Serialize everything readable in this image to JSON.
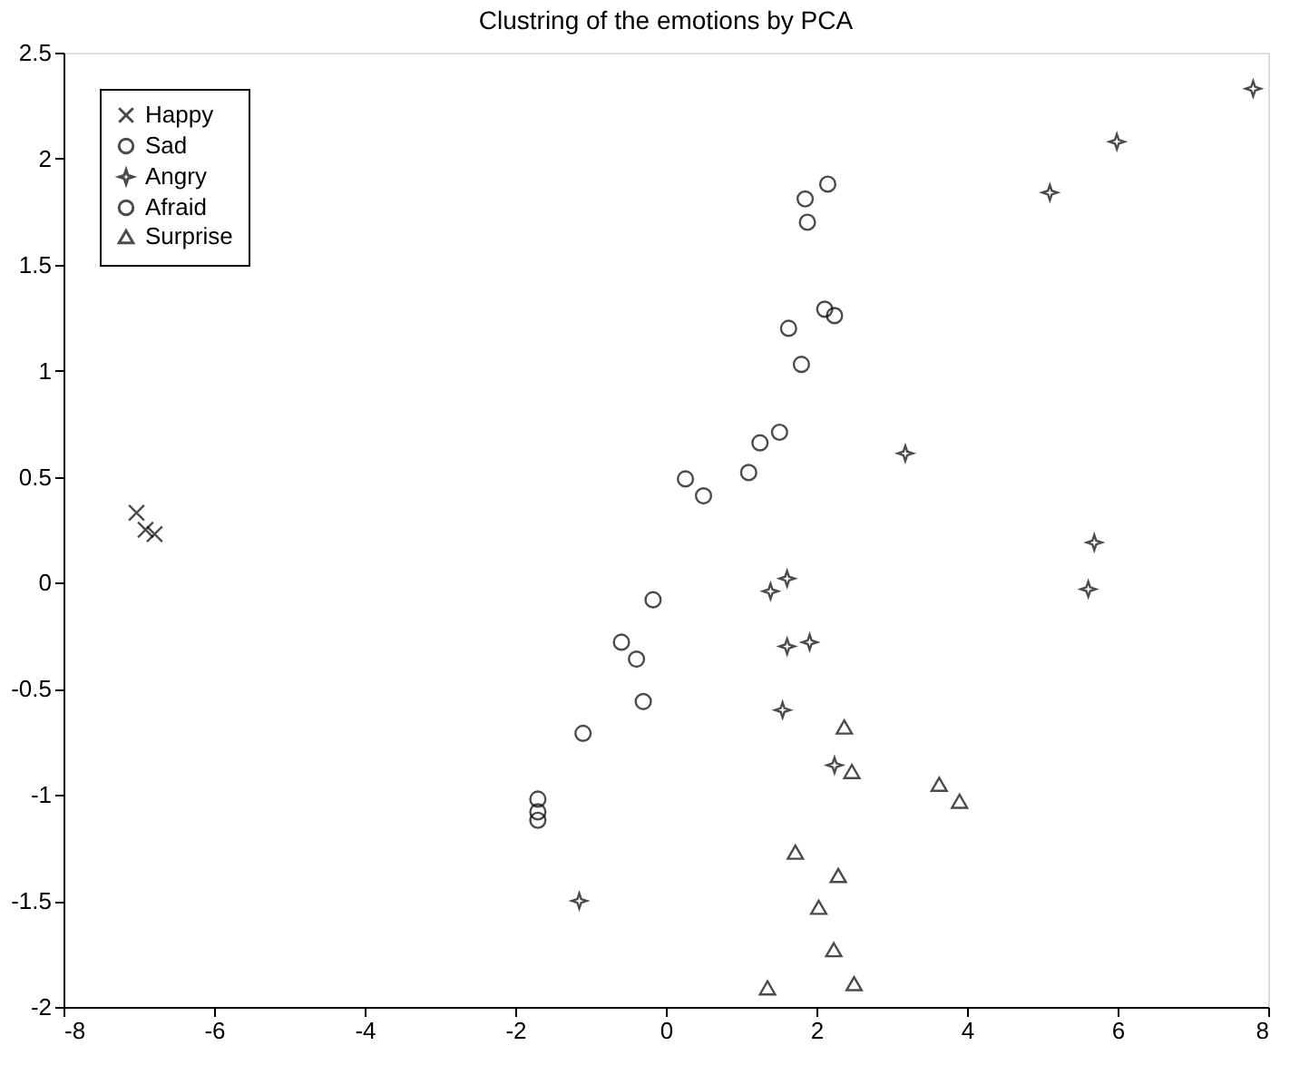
{
  "chart_data": {
    "type": "scatter",
    "title": "Clustring of the emotions by PCA",
    "xlim": [
      -8,
      8
    ],
    "xticks": [
      -8,
      -6,
      -4,
      -2,
      0,
      2,
      4,
      6,
      8
    ],
    "ylim": [
      -2,
      2.5
    ],
    "yticks": [
      -2,
      -1.5,
      -1,
      -0.5,
      0,
      0.5,
      1,
      1.5,
      2,
      2.5
    ],
    "grid": false,
    "legend": "top left",
    "series": [
      {
        "name": "Happy",
        "color": "#000000",
        "marker": "cross",
        "x": [
          -7.03,
          -6.91,
          -6.79
        ],
        "values": [
          0.33,
          0.25,
          0.23
        ]
      },
      {
        "name": "Sad",
        "color": "#000000",
        "marker": "circle",
        "x": [
          0.26,
          0.5,
          -0.17,
          -0.59,
          -0.39,
          -0.3,
          -1.1,
          -1.7,
          -1.7,
          -1.7
        ],
        "values": [
          0.49,
          0.41,
          -0.08,
          -0.28,
          -0.36,
          -0.56,
          -0.71,
          -1.02,
          -1.08,
          -1.12
        ]
      },
      {
        "name": "Angry",
        "color": "#000000",
        "marker": "star",
        "x": [
          3.18,
          1.61,
          1.39,
          1.61,
          1.91,
          1.55,
          2.24,
          5.99,
          5.1,
          5.69,
          5.61,
          7.8,
          -1.15
        ],
        "values": [
          0.61,
          0.02,
          -0.04,
          -0.3,
          -0.28,
          -0.6,
          -0.86,
          2.08,
          1.84,
          0.19,
          -0.03,
          2.33,
          -1.5
        ]
      },
      {
        "name": "Afraid",
        "color": "#000000",
        "marker": "circle",
        "x": [
          2.15,
          1.85,
          1.88,
          2.11,
          2.24,
          1.63,
          1.8,
          1.51,
          1.25,
          1.1
        ],
        "values": [
          1.88,
          1.81,
          1.7,
          1.29,
          1.26,
          1.2,
          1.03,
          0.71,
          0.66,
          0.52
        ]
      },
      {
        "name": "Surprise",
        "color": "#000000",
        "marker": "triangle",
        "x": [
          2.37,
          2.47,
          3.63,
          3.9,
          1.72,
          2.29,
          2.03,
          2.23,
          1.35,
          2.5
        ],
        "values": [
          -0.68,
          -0.89,
          -0.95,
          -1.03,
          -1.27,
          -1.38,
          -1.53,
          -1.73,
          -1.91,
          -1.89
        ]
      }
    ]
  }
}
